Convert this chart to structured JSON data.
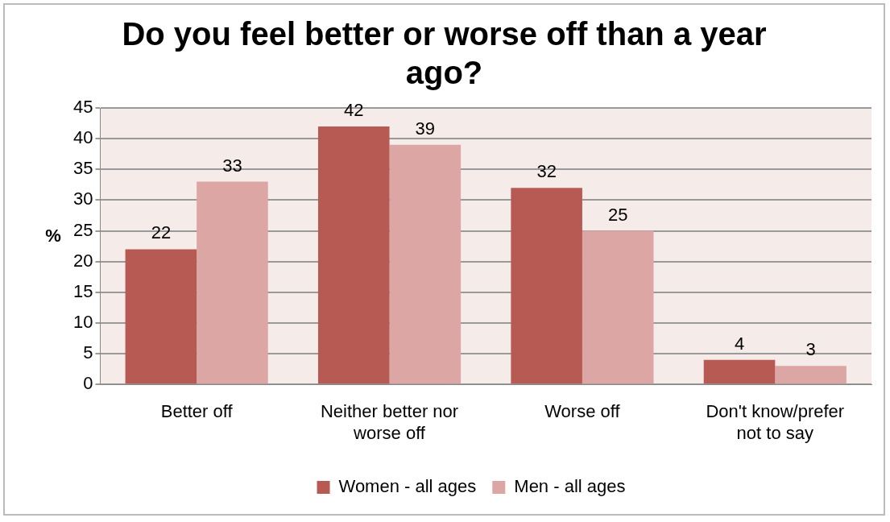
{
  "chart_data": {
    "type": "bar",
    "title": "Do you feel better or worse off than a year ago?",
    "ylabel": "%",
    "categories": [
      "Better off",
      "Neither better nor worse off",
      "Worse off",
      "Don't know/prefer not to say"
    ],
    "series": [
      {
        "name": "Women - all ages",
        "color": "#b85a54",
        "values": [
          22,
          42,
          32,
          4
        ]
      },
      {
        "name": "Men - all ages",
        "color": "#dba6a3",
        "values": [
          33,
          39,
          25,
          3
        ]
      }
    ],
    "ylim": [
      0,
      45
    ],
    "yticks": [
      0,
      5,
      10,
      15,
      20,
      25,
      30,
      35,
      40,
      45
    ],
    "grid": "y",
    "legend": "bottom",
    "data_labels": true
  }
}
